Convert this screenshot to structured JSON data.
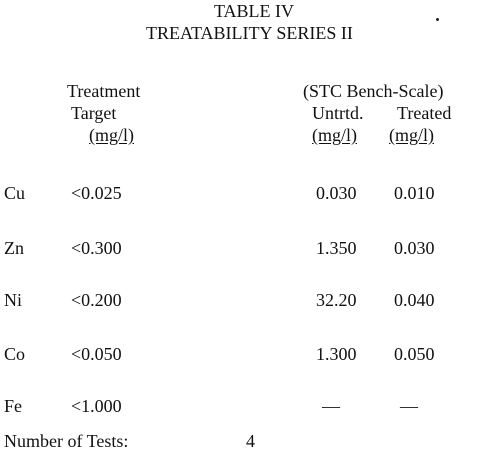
{
  "table": {
    "title": "TABLE IV",
    "subtitle": "TREATABILITY SERIES II",
    "headers": {
      "treatment_line1": "Treatment",
      "treatment_line2": "Target",
      "treatment_unit": "(mg/l)",
      "group": "(STC Bench-Scale)",
      "untreated": "Untrtd.",
      "untreated_unit": "(mg/l)",
      "treated": "Treated",
      "treated_unit": "(mg/l)"
    },
    "rows": [
      {
        "element": "Cu",
        "target": "<0.025",
        "untreated": "0.030",
        "treated": "0.010"
      },
      {
        "element": "Zn",
        "target": "<0.300",
        "untreated": "1.350",
        "treated": "0.030"
      },
      {
        "element": "Ni",
        "target": "<0.200",
        "untreated": "32.20",
        "treated": "0.040"
      },
      {
        "element": "Co",
        "target": "<0.050",
        "untreated": "1.300",
        "treated": "0.050"
      },
      {
        "element": "Fe",
        "target": "<1.000",
        "untreated": "—",
        "treated": "—"
      }
    ],
    "footer": {
      "label": "Number of Tests:",
      "value": "4"
    }
  }
}
